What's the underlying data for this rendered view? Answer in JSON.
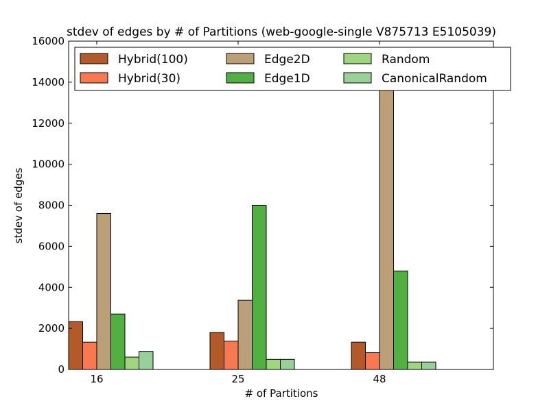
{
  "chart_data": {
    "type": "bar",
    "title": "stdev of edges by # of Partitions (web-google-single V875713 E5105039)",
    "xlabel": "# of Partitions",
    "ylabel": "stdev of edges",
    "categories": [
      "16",
      "25",
      "48"
    ],
    "ylim": [
      0,
      16000
    ],
    "yticks": [
      0,
      2000,
      4000,
      6000,
      8000,
      10000,
      12000,
      14000,
      16000
    ],
    "ytick_labels": [
      "0",
      "2000",
      "4000",
      "6000",
      "8000",
      "10000",
      "12000",
      "14000",
      "16000"
    ],
    "grid": false,
    "legend_position": "top",
    "legend_columns": 3,
    "series": [
      {
        "name": "Hybrid(100)",
        "color": "#b35a2a",
        "values": [
          2330,
          1800,
          1330
        ]
      },
      {
        "name": "Hybrid(30)",
        "color": "#f87850",
        "values": [
          1330,
          1380,
          820
        ]
      },
      {
        "name": "Edge2D",
        "color": "#bb9f78",
        "values": [
          7600,
          3370,
          14000
        ]
      },
      {
        "name": "Edge1D",
        "color": "#52b043",
        "values": [
          2700,
          8000,
          4800
        ]
      },
      {
        "name": "Random",
        "color": "#9ed57e",
        "values": [
          600,
          490,
          360
        ]
      },
      {
        "name": "CanonicalRandom",
        "color": "#98d197",
        "values": [
          880,
          490,
          360
        ]
      }
    ]
  }
}
